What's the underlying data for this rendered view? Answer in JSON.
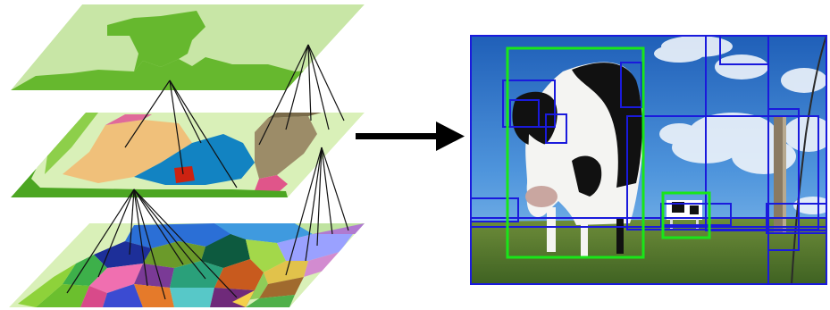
{
  "diagram": {
    "left_panel": "hierarchical-segmentation-layers",
    "layers": [
      {
        "level": "top",
        "segments": 2
      },
      {
        "level": "middle",
        "segments": 9
      },
      {
        "level": "bottom",
        "segments": 26
      }
    ],
    "arrow": "right-arrow-icon",
    "right_panel": "photo-with-bounding-boxes",
    "photo_content": [
      "cow-foreground",
      "cow-background",
      "sky",
      "grass",
      "fence-post",
      "barbed-wire"
    ],
    "box_colors": {
      "selected": "#19e619",
      "candidate": "#1a1adc"
    },
    "selected_box_count": 2,
    "candidate_box_count": 14
  }
}
